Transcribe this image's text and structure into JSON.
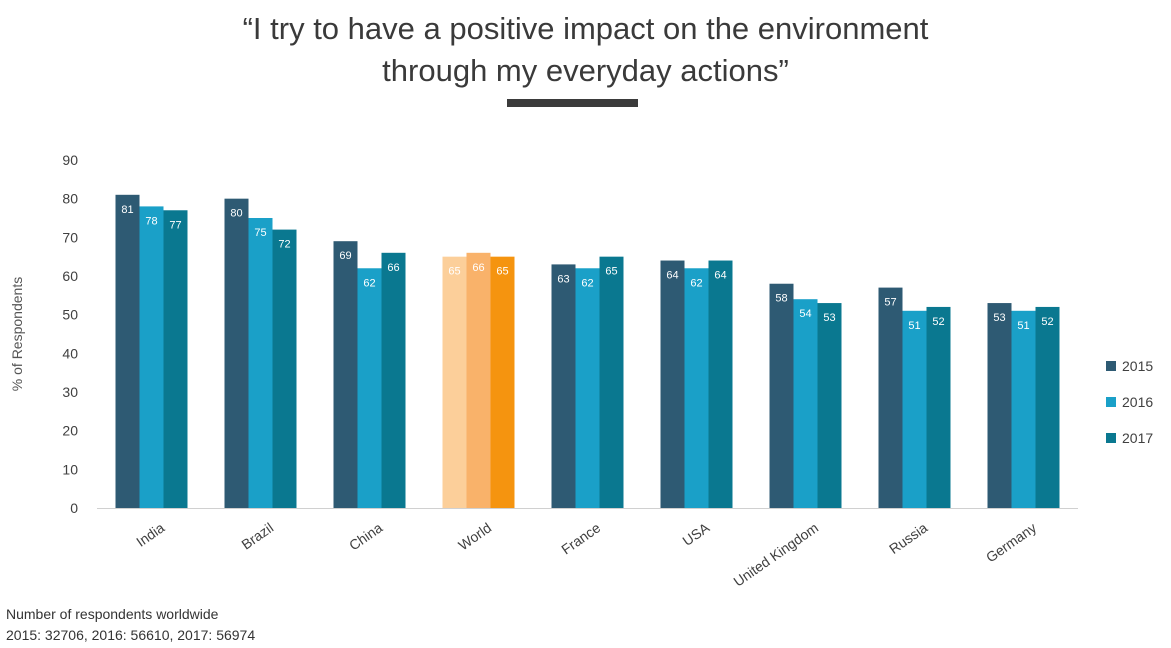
{
  "title_line1": "“I try to have a positive impact on the environment",
  "title_line2": "through my everyday actions”",
  "note_line1": "Number of respondents worldwide",
  "note_line2": "2015: 32706, 2016: 56610, 2017: 56974",
  "chart_data": {
    "type": "bar",
    "ylabel": "% of Respondents",
    "xlabel": "",
    "ylim": [
      0,
      90
    ],
    "yticks": [
      0,
      10,
      20,
      30,
      40,
      50,
      60,
      70,
      80,
      90
    ],
    "grid": false,
    "legend_position": "right",
    "categories": [
      "India",
      "Brazil",
      "China",
      "World",
      "France",
      "USA",
      "United Kingdom",
      "Russia",
      "Germany"
    ],
    "series": [
      {
        "name": "2015",
        "color": "#2e5a73",
        "values": [
          81,
          80,
          69,
          65,
          63,
          64,
          58,
          57,
          53
        ]
      },
      {
        "name": "2016",
        "color": "#1aa0c8",
        "values": [
          78,
          75,
          62,
          66,
          62,
          62,
          54,
          51,
          51
        ]
      },
      {
        "name": "2017",
        "color": "#0a7890",
        "values": [
          77,
          72,
          66,
          65,
          65,
          64,
          53,
          52,
          52
        ]
      }
    ],
    "highlight": {
      "category": "World",
      "colors": [
        "#fccf9a",
        "#f9b26a",
        "#f5940f"
      ]
    }
  }
}
